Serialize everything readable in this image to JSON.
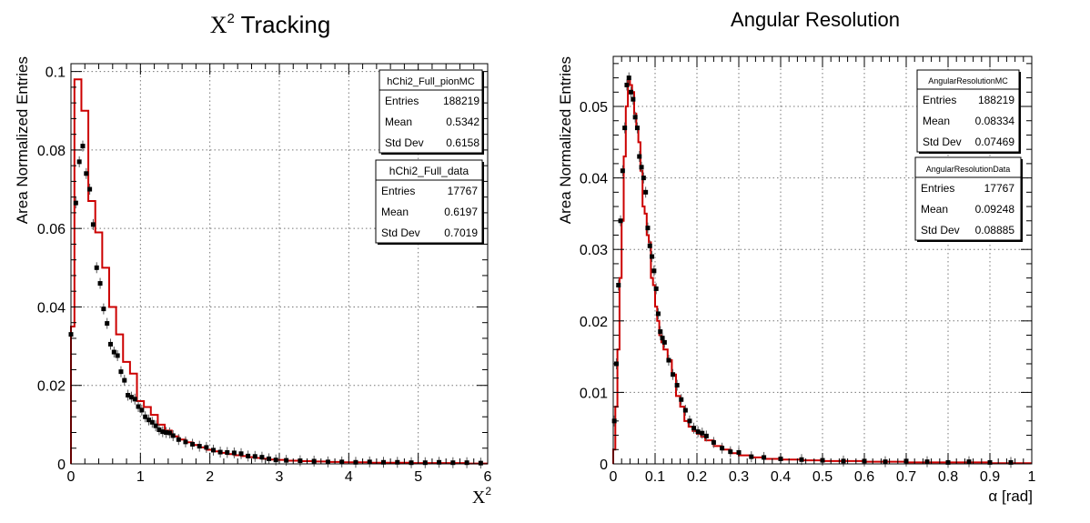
{
  "chart_data": [
    {
      "type": "histogram",
      "title_main": "X",
      "title_sup": "2",
      "title_rest": " Tracking",
      "xlabel_main": "X",
      "xlabel_sup": "2",
      "ylabel": "Area Normalized Entries",
      "xlim": [
        0,
        6
      ],
      "ylim": [
        0,
        0.102
      ],
      "xticks": [
        0,
        1,
        2,
        3,
        4,
        5,
        6
      ],
      "xtick_labels": [
        "0",
        "1",
        "2",
        "3",
        "4",
        "5",
        "6"
      ],
      "yticks": [
        0,
        0.02,
        0.04,
        0.06,
        0.08,
        0.1
      ],
      "ytick_labels": [
        "0",
        "0.02",
        "0.04",
        "0.06",
        "0.08",
        "0.1"
      ],
      "grid": true,
      "stats_boxes": [
        {
          "name": "hChi2_Full_pionMC",
          "rows": [
            [
              "Entries",
              "188219"
            ],
            [
              "Mean",
              "0.5342"
            ],
            [
              "Std Dev",
              "0.6158"
            ]
          ]
        },
        {
          "name": "hChi2_Full_data",
          "rows": [
            [
              "Entries",
              "17767"
            ],
            [
              "Mean",
              "0.6197"
            ],
            [
              "Std Dev",
              "0.7019"
            ]
          ]
        }
      ],
      "series": [
        {
          "style": "step",
          "color": "#cc0000",
          "x": [
            0,
            0.05,
            0.15,
            0.25,
            0.35,
            0.45,
            0.55,
            0.65,
            0.75,
            0.85,
            0.95,
            1.05,
            1.15,
            1.25,
            1.35,
            1.45,
            1.55,
            1.65,
            1.75,
            1.85,
            1.95,
            2.05,
            2.15,
            2.25,
            2.35,
            2.45,
            2.55,
            2.65,
            2.75,
            2.85,
            2.95,
            3.1,
            3.3,
            3.5,
            3.7,
            3.9,
            4.1,
            4.3,
            4.5,
            4.7,
            4.9,
            5.1,
            5.3,
            5.5,
            5.7,
            5.9,
            6.0
          ],
          "y": [
            0.035,
            0.098,
            0.09,
            0.067,
            0.059,
            0.05,
            0.04,
            0.033,
            0.026,
            0.023,
            0.016,
            0.0145,
            0.0125,
            0.01,
            0.0085,
            0.007,
            0.0062,
            0.0055,
            0.0048,
            0.0042,
            0.0036,
            0.0032,
            0.0028,
            0.0025,
            0.0022,
            0.002,
            0.0017,
            0.0015,
            0.0013,
            0.0011,
            0.001,
            0.0008,
            0.0007,
            0.0006,
            0.0005,
            0.0004,
            0.0004,
            0.0003,
            0.0003,
            0.0003,
            0.0002,
            0.0002,
            0.0002,
            0.0002,
            0.0001,
            0.0001,
            0.0001
          ]
        },
        {
          "style": "points",
          "color": "#000000",
          "x": [
            0.0,
            0.07,
            0.12,
            0.17,
            0.22,
            0.27,
            0.32,
            0.37,
            0.42,
            0.47,
            0.52,
            0.57,
            0.62,
            0.67,
            0.72,
            0.77,
            0.82,
            0.87,
            0.92,
            0.97,
            1.02,
            1.07,
            1.12,
            1.17,
            1.22,
            1.27,
            1.32,
            1.37,
            1.42,
            1.47,
            1.55,
            1.65,
            1.75,
            1.85,
            1.95,
            2.05,
            2.15,
            2.25,
            2.35,
            2.45,
            2.55,
            2.65,
            2.75,
            2.85,
            2.95,
            3.1,
            3.3,
            3.5,
            3.7,
            3.9,
            4.1,
            4.3,
            4.5,
            4.7,
            4.9,
            5.1,
            5.3,
            5.5,
            5.7,
            5.9
          ],
          "y": [
            0.033,
            0.0665,
            0.077,
            0.081,
            0.074,
            0.07,
            0.061,
            0.05,
            0.046,
            0.0395,
            0.0358,
            0.0305,
            0.0285,
            0.0276,
            0.0235,
            0.0213,
            0.0175,
            0.017,
            0.0165,
            0.0146,
            0.0137,
            0.012,
            0.0112,
            0.0106,
            0.0097,
            0.0087,
            0.0082,
            0.008,
            0.0079,
            0.0072,
            0.0062,
            0.0056,
            0.005,
            0.0045,
            0.0042,
            0.0035,
            0.003,
            0.0029,
            0.0028,
            0.0026,
            0.002,
            0.0019,
            0.0017,
            0.0013,
            0.001,
            0.0009,
            0.0008,
            0.0007,
            0.0005,
            0.0005,
            0.0004,
            0.0005,
            0.0004,
            0.0004,
            0.0003,
            0.0003,
            0.0004,
            0.0003,
            0.0003,
            0.0002
          ]
        }
      ]
    },
    {
      "type": "histogram",
      "title_main": "Angular Resolution",
      "title_sup": "",
      "title_rest": "",
      "xlabel_main": "α [rad]",
      "xlabel_sup": "",
      "ylabel": "Area Normalized Entries",
      "xlim": [
        0,
        1
      ],
      "ylim": [
        0,
        0.057
      ],
      "xticks": [
        0,
        0.1,
        0.2,
        0.3,
        0.4,
        0.5,
        0.6,
        0.7,
        0.8,
        0.9,
        1
      ],
      "xtick_labels": [
        "0",
        "0.1",
        "0.2",
        "0.3",
        "0.4",
        "0.5",
        "0.6",
        "0.7",
        "0.8",
        "0.9",
        "1"
      ],
      "yticks": [
        0,
        0.01,
        0.02,
        0.03,
        0.04,
        0.05
      ],
      "ytick_labels": [
        "0",
        "0.01",
        "0.02",
        "0.03",
        "0.04",
        "0.05"
      ],
      "grid": true,
      "stats_boxes": [
        {
          "name": "AngularResolutionMC",
          "rows": [
            [
              "Entries",
              "188219"
            ],
            [
              "Mean",
              "0.08334"
            ],
            [
              "Std Dev",
              "0.07469"
            ]
          ]
        },
        {
          "name": "AngularResolutionData",
          "rows": [
            [
              "Entries",
              "17767"
            ],
            [
              "Mean",
              "0.09248"
            ],
            [
              "Std Dev",
              "0.08885"
            ]
          ]
        }
      ],
      "series": [
        {
          "style": "step",
          "color": "#cc0000",
          "x": [
            0,
            0.005,
            0.01,
            0.015,
            0.02,
            0.025,
            0.03,
            0.035,
            0.04,
            0.045,
            0.05,
            0.055,
            0.06,
            0.065,
            0.07,
            0.075,
            0.08,
            0.085,
            0.09,
            0.095,
            0.1,
            0.105,
            0.11,
            0.115,
            0.12,
            0.13,
            0.14,
            0.15,
            0.16,
            0.17,
            0.18,
            0.19,
            0.2,
            0.21,
            0.22,
            0.24,
            0.26,
            0.28,
            0.3,
            0.33,
            0.36,
            0.4,
            0.45,
            0.5,
            0.6,
            0.7,
            0.8,
            0.9,
            1.0
          ],
          "y": [
            0.002,
            0.008,
            0.016,
            0.026,
            0.034,
            0.043,
            0.05,
            0.054,
            0.053,
            0.052,
            0.049,
            0.047,
            0.045,
            0.041,
            0.036,
            0.035,
            0.032,
            0.031,
            0.026,
            0.025,
            0.022,
            0.02,
            0.018,
            0.017,
            0.016,
            0.0145,
            0.0125,
            0.0095,
            0.008,
            0.006,
            0.0052,
            0.0046,
            0.0042,
            0.0038,
            0.0033,
            0.0025,
            0.002,
            0.0015,
            0.0012,
            0.0009,
            0.0007,
            0.0006,
            0.0005,
            0.0004,
            0.0003,
            0.0002,
            0.0002,
            0.0001,
            0.0001
          ]
        },
        {
          "style": "points",
          "color": "#000000",
          "x": [
            0.0025,
            0.0075,
            0.0125,
            0.0175,
            0.0225,
            0.0275,
            0.0325,
            0.0375,
            0.0425,
            0.0475,
            0.0525,
            0.0575,
            0.0625,
            0.0675,
            0.0725,
            0.0775,
            0.0825,
            0.0875,
            0.0925,
            0.0975,
            0.1025,
            0.1075,
            0.1125,
            0.1175,
            0.1225,
            0.1325,
            0.1425,
            0.1525,
            0.1625,
            0.1725,
            0.1825,
            0.1925,
            0.2025,
            0.2125,
            0.2225,
            0.24,
            0.26,
            0.28,
            0.3,
            0.33,
            0.36,
            0.4,
            0.45,
            0.5,
            0.55,
            0.6,
            0.65,
            0.7,
            0.75,
            0.8,
            0.85,
            0.9,
            0.95
          ],
          "y": [
            0.006,
            0.014,
            0.025,
            0.034,
            0.041,
            0.047,
            0.053,
            0.054,
            0.052,
            0.051,
            0.0485,
            0.047,
            0.043,
            0.0415,
            0.04,
            0.038,
            0.033,
            0.0305,
            0.029,
            0.027,
            0.0245,
            0.021,
            0.0185,
            0.0176,
            0.017,
            0.0145,
            0.0125,
            0.011,
            0.009,
            0.0075,
            0.006,
            0.005,
            0.0045,
            0.0043,
            0.0039,
            0.003,
            0.0022,
            0.0017,
            0.0016,
            0.001,
            0.0009,
            0.0007,
            0.0006,
            0.0005,
            0.0004,
            0.0004,
            0.0003,
            0.0004,
            0.0003,
            0.0002,
            0.0003,
            0.0002,
            0.0002
          ]
        }
      ]
    }
  ]
}
